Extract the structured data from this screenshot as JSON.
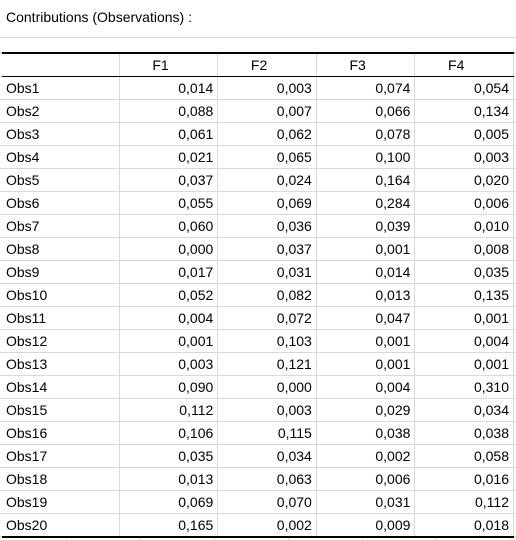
{
  "title": "Contributions (Observations) :",
  "columns": [
    "",
    "F1",
    "F2",
    "F3",
    "F4"
  ],
  "rows": [
    [
      "Obs1",
      "0,014",
      "0,003",
      "0,074",
      "0,054"
    ],
    [
      "Obs2",
      "0,088",
      "0,007",
      "0,066",
      "0,134"
    ],
    [
      "Obs3",
      "0,061",
      "0,062",
      "0,078",
      "0,005"
    ],
    [
      "Obs4",
      "0,021",
      "0,065",
      "0,100",
      "0,003"
    ],
    [
      "Obs5",
      "0,037",
      "0,024",
      "0,164",
      "0,020"
    ],
    [
      "Obs6",
      "0,055",
      "0,069",
      "0,284",
      "0,006"
    ],
    [
      "Obs7",
      "0,060",
      "0,036",
      "0,039",
      "0,010"
    ],
    [
      "Obs8",
      "0,000",
      "0,037",
      "0,001",
      "0,008"
    ],
    [
      "Obs9",
      "0,017",
      "0,031",
      "0,014",
      "0,035"
    ],
    [
      "Obs10",
      "0,052",
      "0,082",
      "0,013",
      "0,135"
    ],
    [
      "Obs11",
      "0,004",
      "0,072",
      "0,047",
      "0,001"
    ],
    [
      "Obs12",
      "0,001",
      "0,103",
      "0,001",
      "0,004"
    ],
    [
      "Obs13",
      "0,003",
      "0,121",
      "0,001",
      "0,001"
    ],
    [
      "Obs14",
      "0,090",
      "0,000",
      "0,004",
      "0,310"
    ],
    [
      "Obs15",
      "0,112",
      "0,003",
      "0,029",
      "0,034"
    ],
    [
      "Obs16",
      "0,106",
      "0,115",
      "0,038",
      "0,038"
    ],
    [
      "Obs17",
      "0,035",
      "0,034",
      "0,002",
      "0,058"
    ],
    [
      "Obs18",
      "0,013",
      "0,063",
      "0,006",
      "0,016"
    ],
    [
      "Obs19",
      "0,069",
      "0,070",
      "0,031",
      "0,112"
    ],
    [
      "Obs20",
      "0,165",
      "0,002",
      "0,009",
      "0,018"
    ]
  ]
}
